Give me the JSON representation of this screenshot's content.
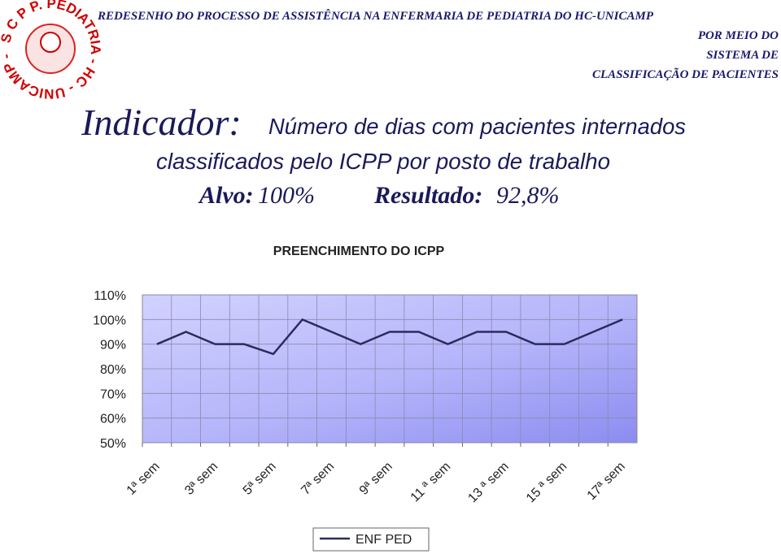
{
  "header": {
    "logo_text": "S C P P. PEDIATRIA - HC - UNICAMP -",
    "title": "REDESENHO DO PROCESSO DE ASSISTÊNCIA  NA ENFERMARIA DE PEDIATRIA DO HC-UNICAMP",
    "subtitle_lines": [
      "POR MEIO DO",
      "SISTEMA DE",
      "CLASSIFICAÇÃO DE PACIENTES"
    ]
  },
  "indicator": {
    "label": "Indicador:",
    "description": [
      "Número de dias com  pacientes internados",
      "classificados  pelo ICPP por posto de trabalho"
    ],
    "target_label": "Alvo:",
    "target_value": "100%",
    "result_label": "Resultado:",
    "result_value": "92,8%"
  },
  "chart_data": {
    "type": "line",
    "title": "PREENCHIMENTO DO ICPP",
    "categories": [
      "1ª sem",
      null,
      "3ª sem",
      null,
      "5ª sem",
      null,
      "7ª sem",
      null,
      "9ª sem",
      null,
      "11 ª sem",
      null,
      "13 ª sem",
      null,
      "15 ª sem",
      null,
      "17ª sem"
    ],
    "series": [
      {
        "name": "ENF PED",
        "color": "#2b2b5e",
        "values": [
          90,
          95,
          90,
          90,
          86,
          100,
          95,
          90,
          95,
          95,
          90,
          95,
          95,
          90,
          90,
          95,
          100
        ]
      }
    ],
    "ylim": [
      50,
      110
    ],
    "yticks": [
      {
        "value": 50,
        "label": "50%"
      },
      {
        "value": 60,
        "label": "60%"
      },
      {
        "value": 70,
        "label": "70%"
      },
      {
        "value": 80,
        "label": "80%"
      },
      {
        "value": 90,
        "label": "90%"
      },
      {
        "value": 100,
        "label": "100%"
      },
      {
        "value": 110,
        "label": "110%"
      }
    ],
    "grid": true,
    "legend": "bottom"
  }
}
